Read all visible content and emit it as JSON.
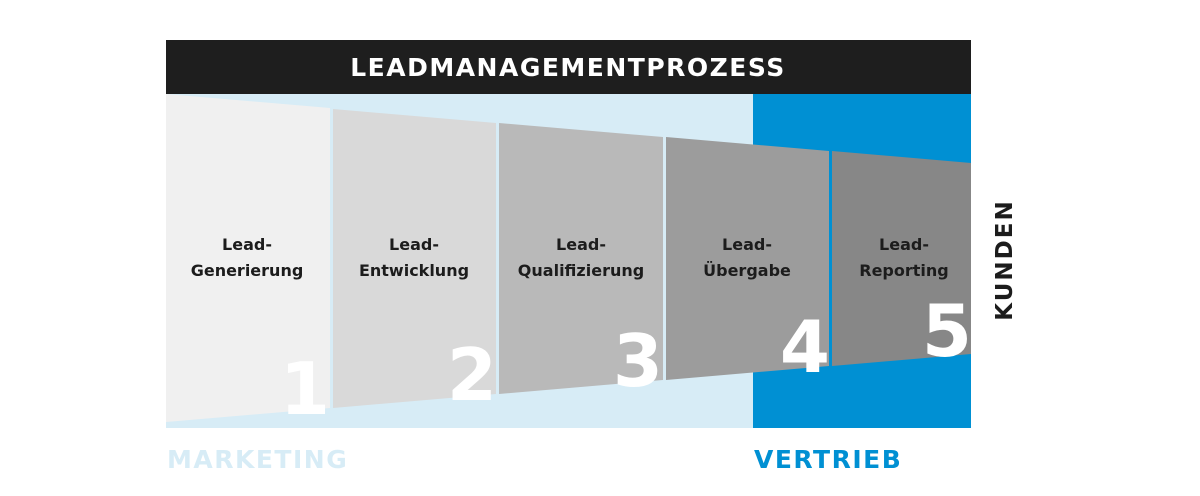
{
  "title": "LEADMANAGEMENTPROZESS",
  "stages": [
    {
      "line1": "Lead-",
      "line2": "Generierung",
      "number": "1",
      "fill": "#f0f0f0"
    },
    {
      "line1": "Lead-",
      "line2": "Entwicklung",
      "number": "2",
      "fill": "#d9d9d9"
    },
    {
      "line1": "Lead-",
      "line2": "Qualifizierung",
      "number": "3",
      "fill": "#b9b9b9"
    },
    {
      "line1": "Lead-",
      "line2": "Übergabe",
      "number": "4",
      "fill": "#9c9c9c"
    },
    {
      "line1": "Lead-",
      "line2": "Reporting",
      "number": "5",
      "fill": "#878787"
    }
  ],
  "side_label": "KUNDEN",
  "marketing_label": "MARKETING",
  "sales_label": "VERTRIEB",
  "colors": {
    "header": "#1e1e1e",
    "marketing": "#d7ecf6",
    "sales": "#0090d3",
    "marketing_text": "#d7ecf6",
    "sales_text": "#0090d3"
  }
}
